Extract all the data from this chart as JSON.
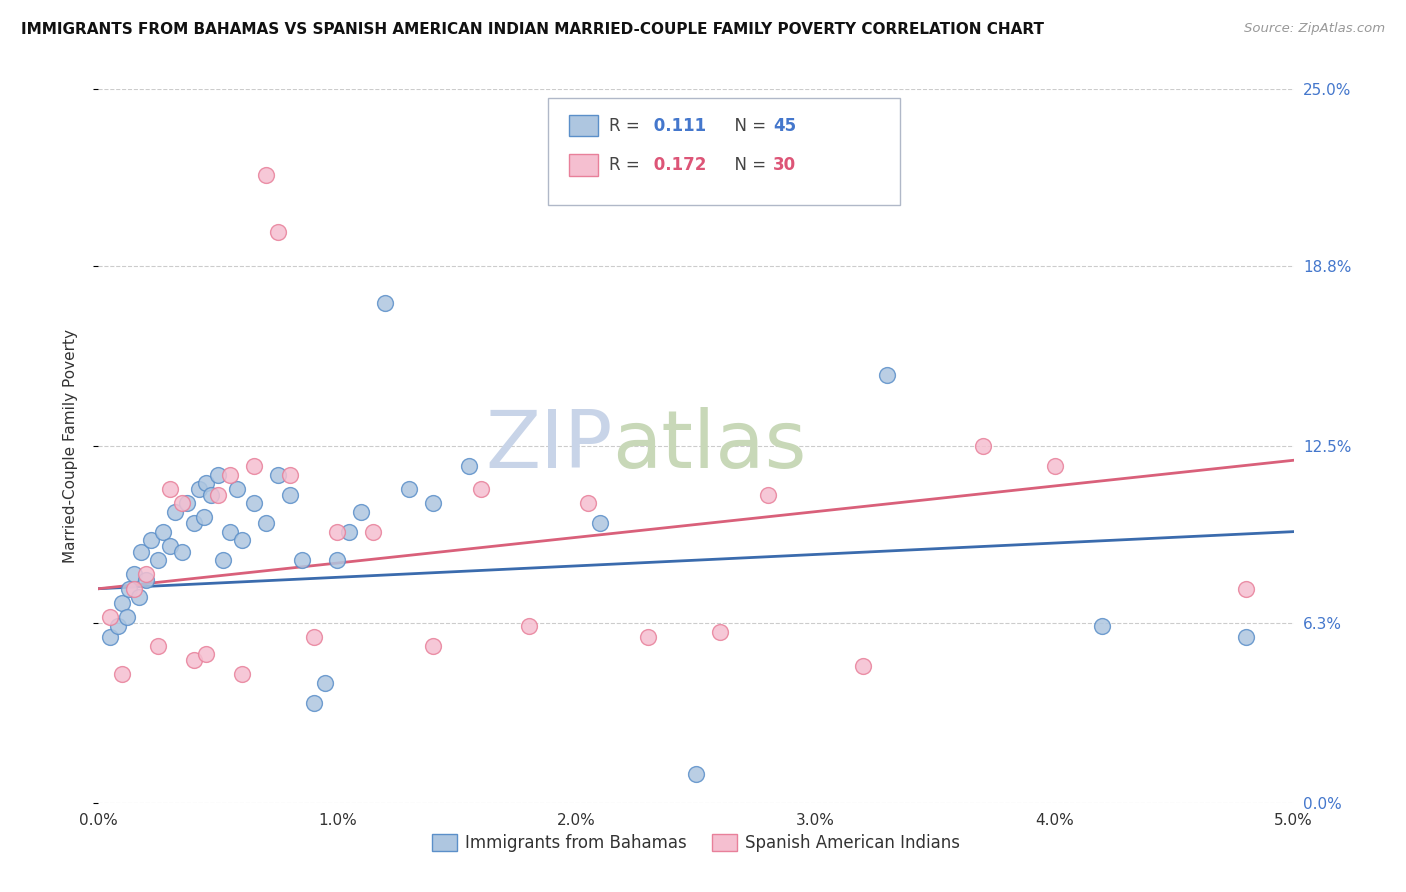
{
  "title": "IMMIGRANTS FROM BAHAMAS VS SPANISH AMERICAN INDIAN MARRIED-COUPLE FAMILY POVERTY CORRELATION CHART",
  "source": "Source: ZipAtlas.com",
  "ylabel": "Married-Couple Family Poverty",
  "xmin": 0.0,
  "xmax": 5.0,
  "ymin": 0.0,
  "ymax": 25.0,
  "yticks": [
    0.0,
    6.3,
    12.5,
    18.8,
    25.0
  ],
  "xticks": [
    0.0,
    1.0,
    2.0,
    3.0,
    4.0,
    5.0
  ],
  "blue_R": 0.111,
  "blue_N": 45,
  "pink_R": 0.172,
  "pink_N": 30,
  "blue_color": "#aec6e0",
  "blue_edge": "#5b8fc9",
  "pink_color": "#f5bfd0",
  "pink_edge": "#e8809a",
  "blue_line_color": "#3a6bad",
  "pink_line_color": "#d9607a",
  "watermark_color_zip": "#c8d4e8",
  "watermark_color_atlas": "#c8d8b8",
  "right_label_color": "#4477cc",
  "legend_R_color_blue": "#4477cc",
  "legend_R_color_pink": "#dd5577",
  "legend_N_color_blue": "#4477cc",
  "legend_N_color_pink": "#dd5577",
  "blue_scatter_x": [
    0.05,
    0.08,
    0.1,
    0.12,
    0.13,
    0.15,
    0.17,
    0.18,
    0.2,
    0.22,
    0.25,
    0.27,
    0.3,
    0.32,
    0.35,
    0.37,
    0.4,
    0.42,
    0.44,
    0.45,
    0.47,
    0.5,
    0.52,
    0.55,
    0.58,
    0.6,
    0.65,
    0.7,
    0.75,
    0.8,
    0.85,
    0.9,
    0.95,
    1.0,
    1.05,
    1.1,
    1.2,
    1.3,
    1.4,
    1.55,
    2.1,
    2.5,
    3.3,
    4.2,
    4.8
  ],
  "blue_scatter_y": [
    5.8,
    6.2,
    7.0,
    6.5,
    7.5,
    8.0,
    7.2,
    8.8,
    7.8,
    9.2,
    8.5,
    9.5,
    9.0,
    10.2,
    8.8,
    10.5,
    9.8,
    11.0,
    10.0,
    11.2,
    10.8,
    11.5,
    8.5,
    9.5,
    11.0,
    9.2,
    10.5,
    9.8,
    11.5,
    10.8,
    8.5,
    3.5,
    4.2,
    8.5,
    9.5,
    10.2,
    17.5,
    11.0,
    10.5,
    11.8,
    9.8,
    1.0,
    15.0,
    6.2,
    5.8
  ],
  "pink_scatter_x": [
    0.05,
    0.1,
    0.15,
    0.2,
    0.25,
    0.3,
    0.35,
    0.4,
    0.45,
    0.5,
    0.55,
    0.6,
    0.65,
    0.7,
    0.75,
    0.8,
    0.9,
    1.0,
    1.15,
    1.4,
    1.6,
    1.8,
    2.05,
    2.3,
    2.6,
    2.8,
    3.2,
    3.7,
    4.0,
    4.8
  ],
  "pink_scatter_y": [
    6.5,
    4.5,
    7.5,
    8.0,
    5.5,
    11.0,
    10.5,
    5.0,
    5.2,
    10.8,
    11.5,
    4.5,
    11.8,
    22.0,
    20.0,
    11.5,
    5.8,
    9.5,
    9.5,
    5.5,
    11.0,
    6.2,
    10.5,
    5.8,
    6.0,
    10.8,
    4.8,
    12.5,
    11.8,
    7.5
  ],
  "legend_label_blue": "Immigrants from Bahamas",
  "legend_label_pink": "Spanish American Indians"
}
